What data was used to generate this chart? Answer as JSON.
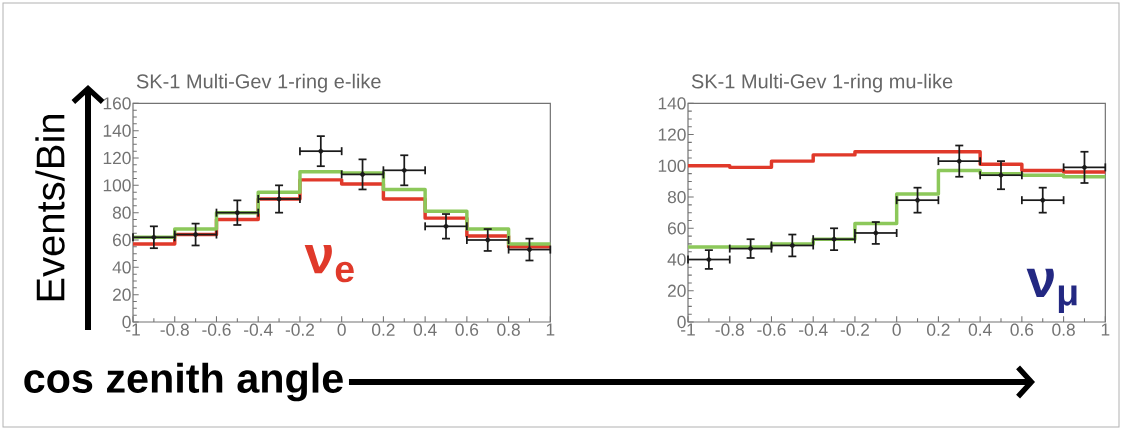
{
  "chart_data": [
    {
      "type": "histogram",
      "title": "SK-1 Multi-Gev 1-ring e-like",
      "ylabel": "Events/Bin",
      "xlabel": "cos zenith angle",
      "annotations": [
        "ν$_{e}$"
      ],
      "xlim": [
        -1,
        1
      ],
      "ylim": [
        0,
        160
      ],
      "xticks": [
        -1,
        -0.8,
        -0.6,
        -0.4,
        -0.2,
        0,
        0.2,
        0.4,
        0.6,
        0.8,
        1
      ],
      "yticks": [
        0,
        20,
        40,
        60,
        80,
        100,
        120,
        140,
        160
      ],
      "grid": false,
      "series": [
        {
          "color": "#e0392a",
          "bins": [
            -1,
            -0.8,
            -0.6,
            -0.4,
            -0.2,
            0,
            0.2,
            0.4,
            0.6,
            0.8,
            1
          ],
          "values": [
            57,
            64,
            75,
            90,
            104,
            101,
            90,
            76,
            63,
            55
          ]
        },
        {
          "color": "#8cc85a",
          "bins": [
            -1,
            -0.8,
            -0.6,
            -0.4,
            -0.2,
            0,
            0.2,
            0.4,
            0.6,
            0.8,
            1
          ],
          "values": [
            62,
            68,
            80,
            95,
            110,
            109,
            97,
            81,
            68,
            57
          ]
        },
        {
          "type": "scatter",
          "color": "#1a1a1a",
          "marker": "circle",
          "x": [
            -0.9,
            -0.7,
            -0.5,
            -0.3,
            -0.1,
            0.1,
            0.3,
            0.5,
            0.7,
            0.9
          ],
          "values": [
            62,
            64,
            80,
            90,
            125,
            108,
            111,
            70,
            60,
            53
          ],
          "errors": [
            8,
            8,
            9,
            10,
            11,
            11,
            11,
            9,
            8,
            8
          ],
          "xerrors": [
            0.1,
            0.1,
            0.1,
            0.1,
            0.1,
            0.1,
            0.1,
            0.1,
            0.1,
            0.1
          ]
        }
      ]
    },
    {
      "type": "histogram",
      "title": "SK-1 Multi-Gev 1-ring mu-like",
      "annotations": [
        "ν$_{μ}$"
      ],
      "xlim": [
        -1,
        1
      ],
      "ylim": [
        0,
        140
      ],
      "xticks": [
        -1,
        -0.8,
        -0.6,
        -0.4,
        -0.2,
        0,
        0.2,
        0.4,
        0.6,
        0.8,
        1
      ],
      "yticks": [
        0,
        20,
        40,
        60,
        80,
        100,
        120,
        140
      ],
      "grid": false,
      "series": [
        {
          "color": "#e0392a",
          "bins": [
            -1,
            -0.8,
            -0.6,
            -0.4,
            -0.2,
            0,
            0.2,
            0.4,
            0.6,
            0.8,
            1
          ],
          "values": [
            100,
            99,
            103,
            107,
            109,
            109,
            109,
            101,
            97,
            96
          ]
        },
        {
          "color": "#8cc85a",
          "bins": [
            -1,
            -0.8,
            -0.6,
            -0.4,
            -0.2,
            0,
            0.2,
            0.4,
            0.6,
            0.8,
            1
          ],
          "values": [
            48,
            48,
            50,
            53,
            63,
            82,
            97,
            95,
            94,
            93
          ]
        },
        {
          "type": "scatter",
          "color": "#1a1a1a",
          "marker": "circle",
          "x": [
            -0.9,
            -0.7,
            -0.5,
            -0.3,
            -0.1,
            0.1,
            0.3,
            0.5,
            0.7,
            0.9
          ],
          "values": [
            40,
            47,
            49,
            53,
            57,
            78,
            103,
            94,
            78,
            99
          ],
          "errors": [
            6,
            6,
            7,
            7,
            7,
            8,
            10,
            9,
            8,
            10
          ],
          "xerrors": [
            0.1,
            0.1,
            0.1,
            0.1,
            0.1,
            0.1,
            0.1,
            0.1,
            0.1,
            0.1
          ]
        }
      ]
    }
  ]
}
